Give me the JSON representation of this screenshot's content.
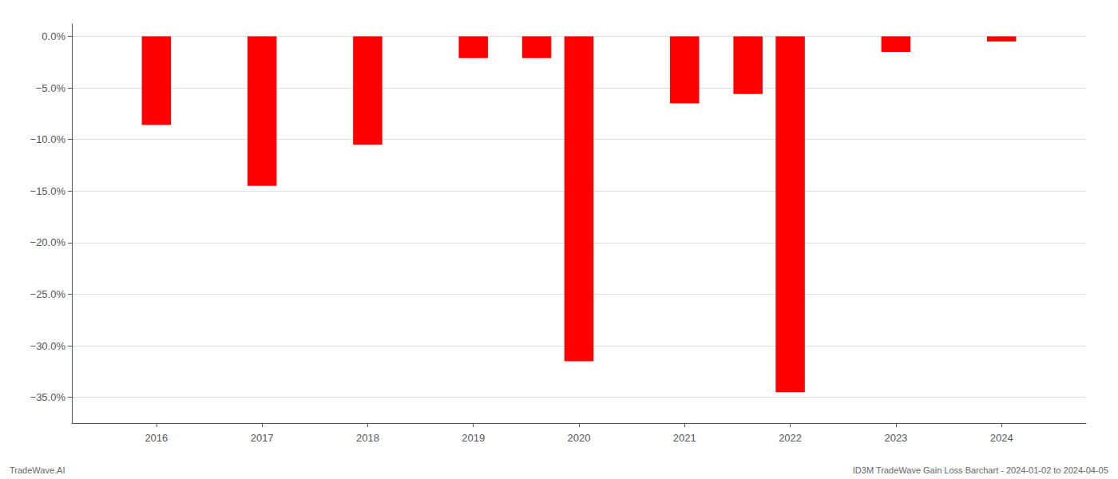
{
  "chart_data": {
    "type": "bar",
    "x": [
      2016,
      2017,
      2018,
      2019,
      2019.6,
      2020,
      2021,
      2021.6,
      2022,
      2023,
      2024
    ],
    "values": [
      -0.086,
      -0.145,
      -0.105,
      -0.021,
      -0.021,
      -0.315,
      -0.065,
      -0.056,
      -0.345,
      -0.015,
      -0.005
    ],
    "color": "#ff0000",
    "xlim": [
      2015.2,
      2024.8
    ],
    "xticks": [
      2016,
      2017,
      2018,
      2019,
      2020,
      2021,
      2022,
      2023,
      2024
    ],
    "ylim": [
      -0.375,
      0.012
    ],
    "yticks": [
      {
        "value": 0.0,
        "label": "0.0%"
      },
      {
        "value": -0.05,
        "label": "−5.0%"
      },
      {
        "value": -0.1,
        "label": "−10.0%"
      },
      {
        "value": -0.15,
        "label": "−15.0%"
      },
      {
        "value": -0.2,
        "label": "−20.0%"
      },
      {
        "value": -0.25,
        "label": "−25.0%"
      },
      {
        "value": -0.3,
        "label": "−30.0%"
      },
      {
        "value": -0.35,
        "label": "−35.0%"
      }
    ],
    "grid": true,
    "annotations": [
      "TradeWave.AI",
      "ID3M TradeWave Gain Loss Barchart - 2024-01-02 to 2024-04-05"
    ]
  }
}
